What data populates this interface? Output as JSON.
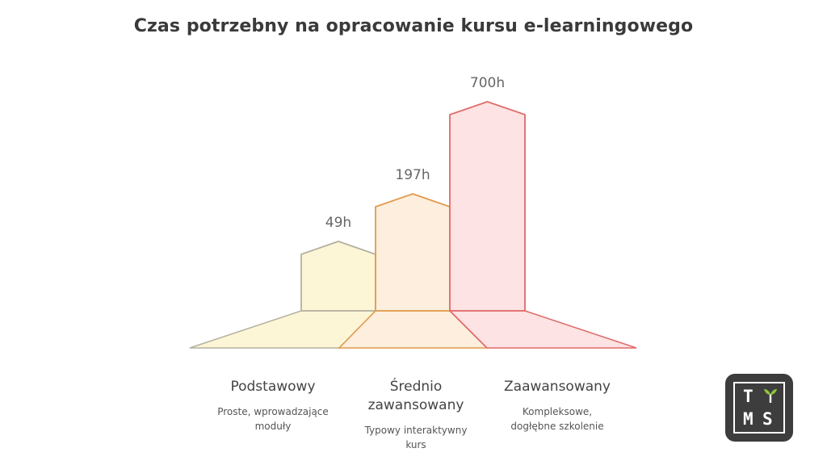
{
  "chart_data": {
    "type": "bar",
    "title": "Czas potrzebny na opracowanie kursu e-learningowego",
    "categories": [
      "Podstawowy",
      "Średnio zawansowany",
      "Zaawansowany"
    ],
    "values": [
      49,
      197,
      700
    ],
    "value_labels": [
      "49h",
      "197h",
      "700h"
    ],
    "descriptions": [
      "Proste, wprowadzające moduły",
      "Typowy interaktywny kurs",
      "Kompleksowe, dogłębne szkolenie"
    ],
    "colors": [
      {
        "fill": "#fdf6d6",
        "stroke": "#b5b0a0",
        "label": "#666666"
      },
      {
        "fill": "#fdeedd",
        "stroke": "#e09a4c",
        "label": "#666666"
      },
      {
        "fill": "#fde3e3",
        "stroke": "#e06a6a",
        "label": "#666666"
      }
    ]
  },
  "logo": {
    "top_letters": [
      "T",
      "M",
      "S"
    ]
  }
}
